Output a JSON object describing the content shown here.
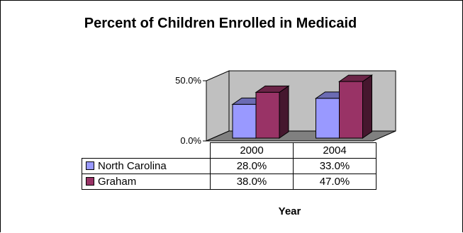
{
  "chart_data": {
    "type": "bar",
    "title": "Percent of Children Enrolled in Medicaid",
    "xlabel": "Year",
    "ylabel": "",
    "categories": [
      "2000",
      "2004"
    ],
    "series": [
      {
        "name": "North Carolina",
        "values": [
          28.0,
          33.0
        ],
        "labels": [
          "28.0%",
          "33.0%"
        ],
        "color": "#9999ff"
      },
      {
        "name": "Graham",
        "values": [
          38.0,
          47.0
        ],
        "labels": [
          "38.0%",
          "47.0%"
        ],
        "color": "#993366"
      }
    ],
    "yticks": [
      "0.0%",
      "50.0%"
    ],
    "ylim": [
      0,
      50
    ],
    "grid": false,
    "legend": "data-table"
  }
}
